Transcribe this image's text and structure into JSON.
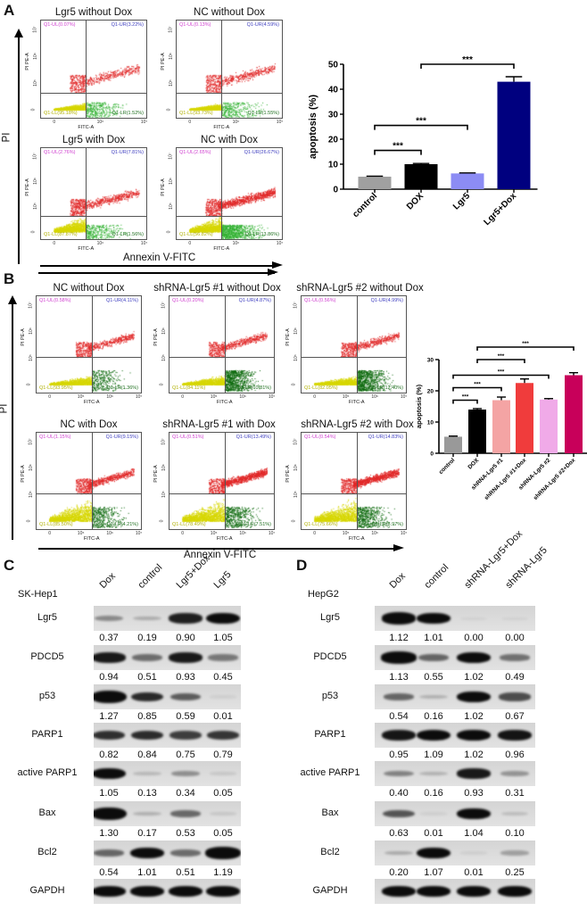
{
  "panel_a": {
    "letter": "A",
    "y_axis_title": "PI",
    "x_axis_title": "Annexin V-FITC",
    "plot_ylabel": "PI PE-A",
    "plot_xlabel": "FITC-A",
    "y_ticks": [
      "0",
      "10⁵",
      "10⁶",
      "10⁷"
    ],
    "x_ticks": [
      "0",
      "10⁶",
      "10⁷"
    ],
    "plots": [
      {
        "title": "Lgr5 without Dox",
        "ul": "Q1-UL(0.07%)",
        "ur": "Q1-UR(3.22%)",
        "ll": "Q1-LL(95.18%)",
        "lr": "Q1-LR(1.52%)"
      },
      {
        "title": "NC without Dox",
        "ul": "Q1-UL(0.13%)",
        "ur": "Q1-UR(4.59%)",
        "ll": "Q1-LL(93.73%)",
        "lr": "Q1-LR(1.55%)"
      },
      {
        "title": "Lgr5 with Dox",
        "ul": "Q1-UL(2.76%)",
        "ur": "Q1-UR(7.81%)",
        "ll": "Q1-LL(87.87%)",
        "lr": "Q1-LR(1.56%)"
      },
      {
        "title": "NC with Dox",
        "ul": "Q1-UL(2.65%)",
        "ur": "Q1-UR(26.67%)",
        "ll": "Q1-LL(56.82%)",
        "lr": "Q1-LR(13.86%)"
      }
    ]
  },
  "panel_b": {
    "letter": "B",
    "y_axis_title": "PI",
    "x_axis_title": "Annexin V-FITC",
    "plot_ylabel": "PI PE-A",
    "plot_xlabel": "FITC-A",
    "y_ticks": [
      "0",
      "10⁵",
      "10⁶",
      "10⁷"
    ],
    "x_ticks": [
      "0",
      "10⁵",
      "10⁶",
      "10⁷"
    ],
    "plots": [
      {
        "title": "NC without Dox",
        "ul": "Q1-UL(0.58%)",
        "ur": "Q1-UR(4.11%)",
        "ll": "Q1-LL(93.95%)",
        "lr": "Q1-LR(1.36%)"
      },
      {
        "title": "shRNA-Lgr5 #1 without Dox",
        "ul": "Q1-UL(0.20%)",
        "ur": "Q1-UR(4.87%)",
        "ll": "Q1-LL(84.11%)",
        "lr": "Q1-LR(10.81%)"
      },
      {
        "title": "shRNA-Lgr5 #2 without Dox",
        "ul": "Q1-UL(0.56%)",
        "ur": "Q1-UR(4.99%)",
        "ll": "Q1-LL(82.05%)",
        "lr": "Q1-LR(12.40%)"
      },
      {
        "title": "NC with Dox",
        "ul": "Q1-UL(1.15%)",
        "ur": "Q1-UR(9.15%)",
        "ll": "Q1-LL(85.50%)",
        "lr": "Q1-LR(4.21%)"
      },
      {
        "title": "shRNA-Lgr5 #1 with Dox",
        "ul": "Q1-UL(0.51%)",
        "ur": "Q1-UR(13.49%)",
        "ll": "Q1-LL(78.49%)",
        "lr": "Q1-LR(7.51%)"
      },
      {
        "title": "shRNA-Lgr5 #2 with Dox",
        "ul": "Q1-UL(0.54%)",
        "ur": "Q1-UR(14.83%)",
        "ll": "Q1-LL(75.66%)",
        "lr": "Q1-LR(8.97%)"
      }
    ]
  },
  "colors": {
    "ul": "#d040d0",
    "ur": "#4040c0",
    "ll": "#b0b000",
    "lr": "#207020",
    "dot_red": "#e02828",
    "dot_yellow": "#d6d600",
    "dot_green_a": "#30b030",
    "dot_green_b": "#0e6a0e"
  },
  "chart_data": [
    {
      "type": "bar",
      "panel": "A",
      "categories": [
        "control",
        "DOX",
        "Lgr5",
        "Lgr5+Dox"
      ],
      "values": [
        5.0,
        10.0,
        6.3,
        43.0
      ],
      "errors": [
        0.2,
        0.3,
        0.2,
        2.0
      ],
      "colors": [
        "#a0a0a0",
        "#000000",
        "#8c8cf4",
        "#00007f"
      ],
      "ylabel": "apoptosis (%)",
      "xlabel": "",
      "ylim": [
        0,
        50
      ],
      "yticks": [
        0,
        10,
        20,
        30,
        40,
        50
      ],
      "significance": [
        {
          "from": 0,
          "to": 1,
          "level": 15.5,
          "label": "***"
        },
        {
          "from": 0,
          "to": 2,
          "level": 25.5,
          "label": "***"
        },
        {
          "from": 1,
          "to": 3,
          "level": 50,
          "label": "***"
        }
      ]
    },
    {
      "type": "bar",
      "panel": "B",
      "categories": [
        "control",
        "DOX",
        "shRNA-Lgr5 #1",
        "shRNA-Lgr5 #1+Dox",
        "shRNA-Lgr5 #2",
        "shRNA-Lgr5 #2+Dox"
      ],
      "values": [
        5.3,
        14.0,
        17.0,
        22.5,
        17.2,
        25.0
      ],
      "errors": [
        0.2,
        0.3,
        1.0,
        1.3,
        0.3,
        0.8
      ],
      "colors": [
        "#999999",
        "#000000",
        "#f4a4a4",
        "#f03c3c",
        "#f0aae8",
        "#c8005a"
      ],
      "ylabel": "apoptosis (%)",
      "xlabel": "",
      "ylim": [
        0,
        30
      ],
      "yticks": [
        0,
        10,
        20,
        30
      ],
      "significance": [
        {
          "from": 0,
          "to": 1,
          "level": 17,
          "label": "***"
        },
        {
          "from": 0,
          "to": 2,
          "level": 21,
          "label": "***"
        },
        {
          "from": 0,
          "to": 4,
          "level": 25,
          "label": "***"
        },
        {
          "from": 1,
          "to": 3,
          "level": 30,
          "label": "***"
        },
        {
          "from": 1,
          "to": 5,
          "level": 34,
          "label": "***"
        }
      ]
    }
  ],
  "panel_c": {
    "letter": "C",
    "cell_line": "SK-Hep1",
    "lanes": [
      "Dox",
      "control",
      "Lgr5+Dox",
      "Lgr5"
    ],
    "rows": [
      {
        "protein": "Lgr5",
        "values": [
          "0.37",
          "0.19",
          "0.90",
          "1.05"
        ]
      },
      {
        "protein": "PDCD5",
        "values": [
          "0.94",
          "0.51",
          "0.93",
          "0.45"
        ]
      },
      {
        "protein": "p53",
        "values": [
          "1.27",
          "0.85",
          "0.59",
          "0.01"
        ]
      },
      {
        "protein": "PARP1",
        "values": [
          "0.82",
          "0.84",
          "0.75",
          "0.79"
        ]
      },
      {
        "protein": "active PARP1",
        "values": [
          "1.05",
          "0.13",
          "0.34",
          "0.05"
        ]
      },
      {
        "protein": "Bax",
        "values": [
          "1.30",
          "0.17",
          "0.53",
          "0.05"
        ]
      },
      {
        "protein": "Bcl2",
        "values": [
          "0.54",
          "1.01",
          "0.51",
          "1.19"
        ]
      },
      {
        "protein": "GAPDH",
        "values": []
      }
    ]
  },
  "panel_d": {
    "letter": "D",
    "cell_line": "HepG2",
    "lanes": [
      "Dox",
      "control",
      "shRNA-Lgr5+Dox",
      "shRNA-Lgr5"
    ],
    "rows": [
      {
        "protein": "Lgr5",
        "values": [
          "1.12",
          "1.01",
          "0.00",
          "0.00"
        ]
      },
      {
        "protein": "PDCD5",
        "values": [
          "1.13",
          "0.55",
          "1.02",
          "0.49"
        ]
      },
      {
        "protein": "p53",
        "values": [
          "0.54",
          "0.16",
          "1.02",
          "0.67"
        ]
      },
      {
        "protein": "PARP1",
        "values": [
          "0.95",
          "1.09",
          "1.02",
          "0.96"
        ]
      },
      {
        "protein": "active PARP1",
        "values": [
          "0.40",
          "0.16",
          "0.93",
          "0.31"
        ]
      },
      {
        "protein": "Bax",
        "values": [
          "0.63",
          "0.01",
          "1.04",
          "0.10"
        ]
      },
      {
        "protein": "Bcl2",
        "values": [
          "0.20",
          "1.07",
          "0.01",
          "0.25"
        ]
      },
      {
        "protein": "GAPDH",
        "values": []
      }
    ]
  }
}
